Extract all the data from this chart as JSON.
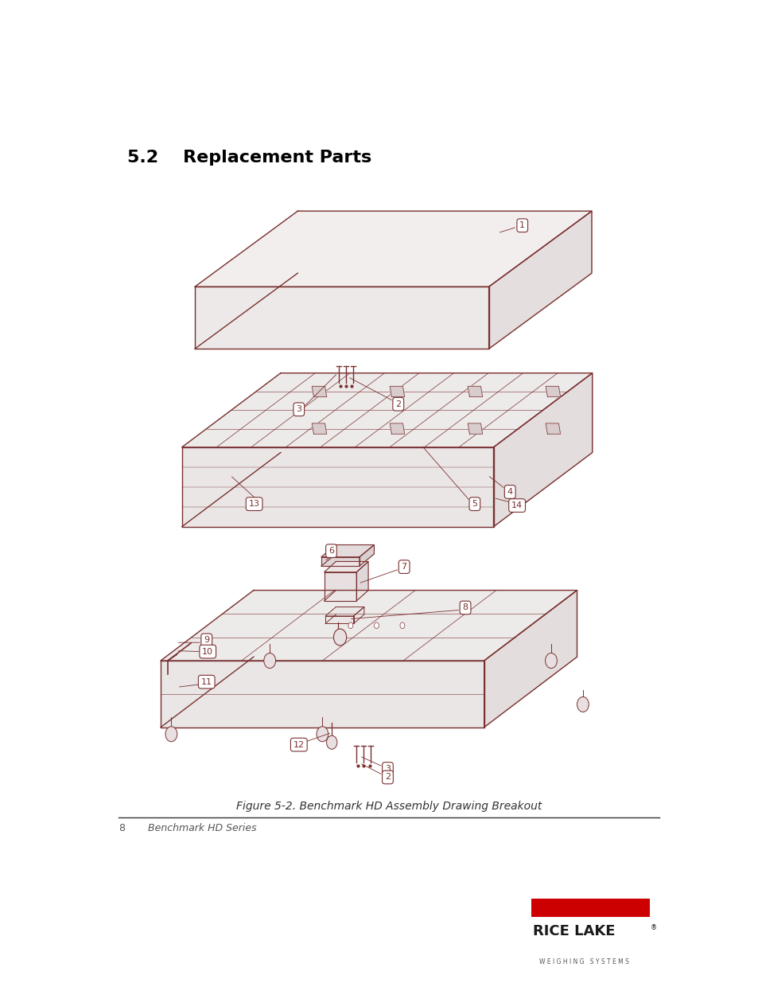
{
  "title": "5.2    Replacement Parts",
  "figure_caption": "Figure 5-2. Benchmark HD Assembly Drawing Breakout",
  "footer_left_number": "8",
  "footer_left_text": "Benchmark HD Series",
  "bg_color": "#ffffff",
  "title_color": "#000000",
  "drawing_color": "#7a3030",
  "label_color": "#7a3030",
  "line_color": "#555555",
  "caption_color": "#333333",
  "footer_color": "#555555",
  "rice_lake_red": "#cc0000",
  "rice_lake_text": "#1a1a1a",
  "title_fontsize": 16,
  "caption_fontsize": 10,
  "footer_fontsize": 9,
  "label_fontsize": 8
}
